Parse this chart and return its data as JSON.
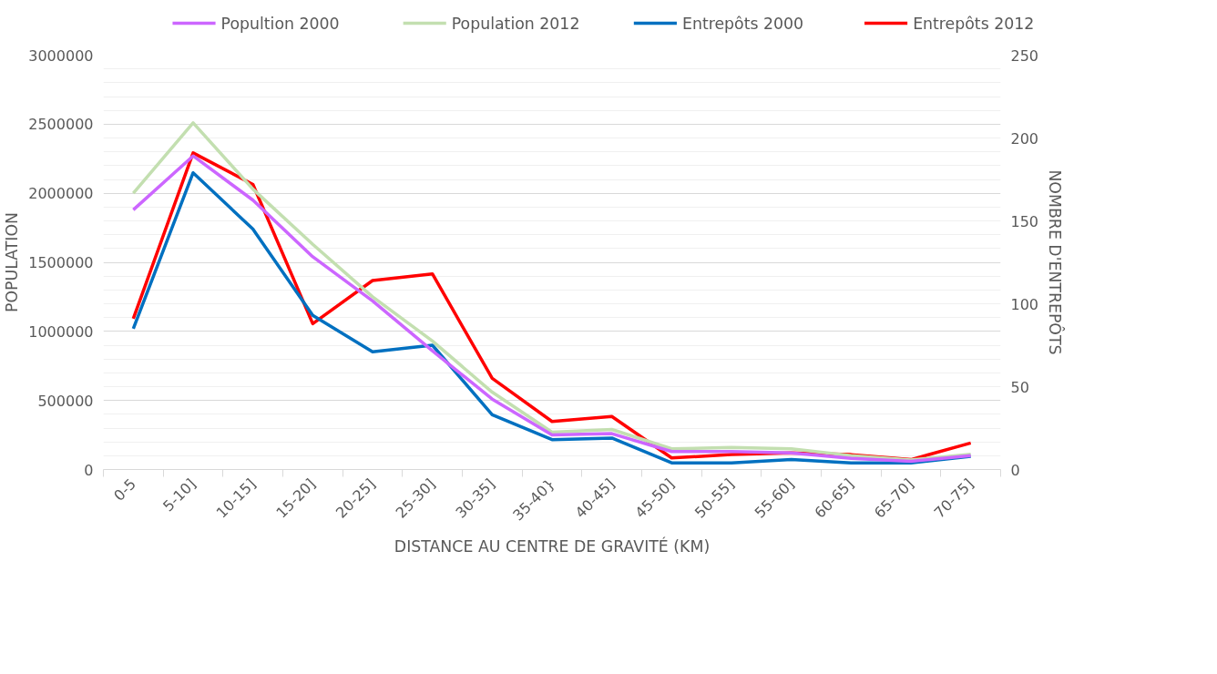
{
  "chart_data": {
    "type": "line",
    "xlabel": "DISTANCE AU CENTRE DE GRAVITÉ (KM)",
    "ylabel": "POPULATION",
    "y2label": "NOMBRE D'ENTREPÔTS",
    "categories": [
      "0-5",
      "5-10]",
      "10-15]",
      "15-20]",
      "20-25]",
      "25-30]",
      "30-35]",
      "35-40}",
      "40-45]",
      "45-50]",
      "50-55]",
      "55-60]",
      "60-65]",
      "65-70]",
      "70-75]"
    ],
    "series": [
      {
        "name": "Popultion 2000",
        "color": "#cc66ff",
        "values": [
          1880000,
          2270000,
          1950000,
          1540000,
          1220000,
          860000,
          510000,
          250000,
          260000,
          130000,
          130000,
          120000,
          80000,
          60000,
          100000
        ]
      },
      {
        "name": "Population 2012",
        "color": "#c3dfb0",
        "values": [
          2000000,
          2510000,
          2030000,
          1630000,
          1250000,
          930000,
          560000,
          270000,
          290000,
          150000,
          160000,
          150000,
          100000,
          70000,
          110000
        ]
      },
      {
        "name": "Entrepôts 2000",
        "color": "#0070c0",
        "axis": "y2",
        "values": [
          85,
          179,
          145,
          93,
          71,
          75,
          33,
          18,
          19,
          4,
          4,
          6,
          4,
          4,
          8
        ]
      },
      {
        "name": "Entrepôts 2012",
        "color": "#ff0000",
        "axis": "y2",
        "values": [
          91,
          191,
          172,
          88,
          114,
          118,
          55,
          29,
          32,
          7,
          9,
          10,
          9,
          6,
          16
        ]
      }
    ],
    "ylim": [
      0,
      3000000
    ],
    "yticks": [
      0,
      500000,
      1000000,
      1500000,
      2000000,
      2500000,
      3000000
    ],
    "y2lim": [
      0,
      250
    ],
    "y2ticks": [
      0,
      50,
      100,
      150,
      200,
      250
    ],
    "grid": "y",
    "legend": "top",
    "marker": "none",
    "line_style": "solid"
  }
}
